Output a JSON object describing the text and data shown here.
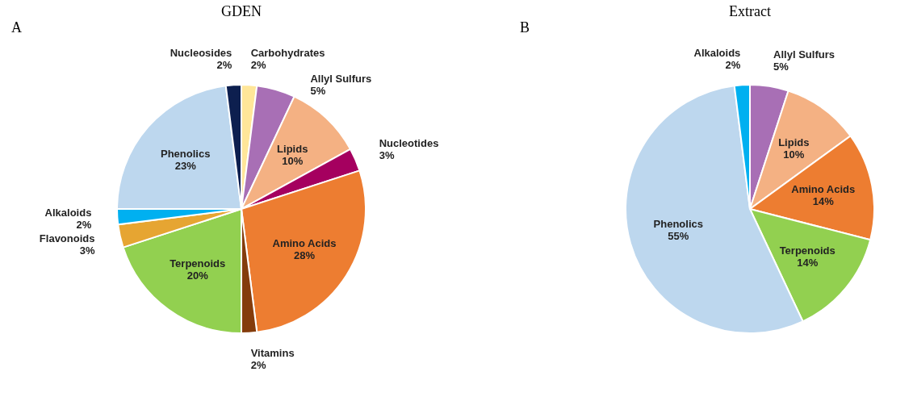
{
  "chart_data": [
    {
      "type": "pie",
      "title": "GDEN",
      "annotations": [
        "A"
      ],
      "categories": [
        "Carbohydrates",
        "Allyl Sulfurs",
        "Lipids",
        "Nucleotides",
        "Amino Acids",
        "Vitamins",
        "Terpenoids",
        "Flavonoids",
        "Alkaloids",
        "Phenolics",
        "Nucleosides"
      ],
      "values": [
        2,
        5,
        10,
        3,
        28,
        2,
        20,
        3,
        2,
        23,
        2
      ],
      "value_labels": [
        "2%",
        "5%",
        "10%",
        "3%",
        "28%",
        "2%",
        "20%",
        "3%",
        "2%",
        "23%",
        "2%"
      ],
      "colors": [
        "#ffe699",
        "#a86fb5",
        "#f4b183",
        "#a5005f",
        "#ed7d31",
        "#843c0c",
        "#92d050",
        "#e6a532",
        "#00b0f0",
        "#bdd7ee",
        "#0d1f4f"
      ]
    },
    {
      "type": "pie",
      "title": "Extract",
      "annotations": [
        "B"
      ],
      "categories": [
        "Allyl Sulfurs",
        "Lipids",
        "Amino Acids",
        "Terpenoids",
        "Phenolics",
        "Alkaloids"
      ],
      "values": [
        5,
        10,
        14,
        14,
        55,
        2
      ],
      "value_labels": [
        "5%",
        "10%",
        "14%",
        "14%",
        "55%",
        "2%"
      ],
      "colors": [
        "#a86fb5",
        "#f4b183",
        "#ed7d31",
        "#92d050",
        "#bdd7ee",
        "#00b0f0"
      ]
    }
  ]
}
